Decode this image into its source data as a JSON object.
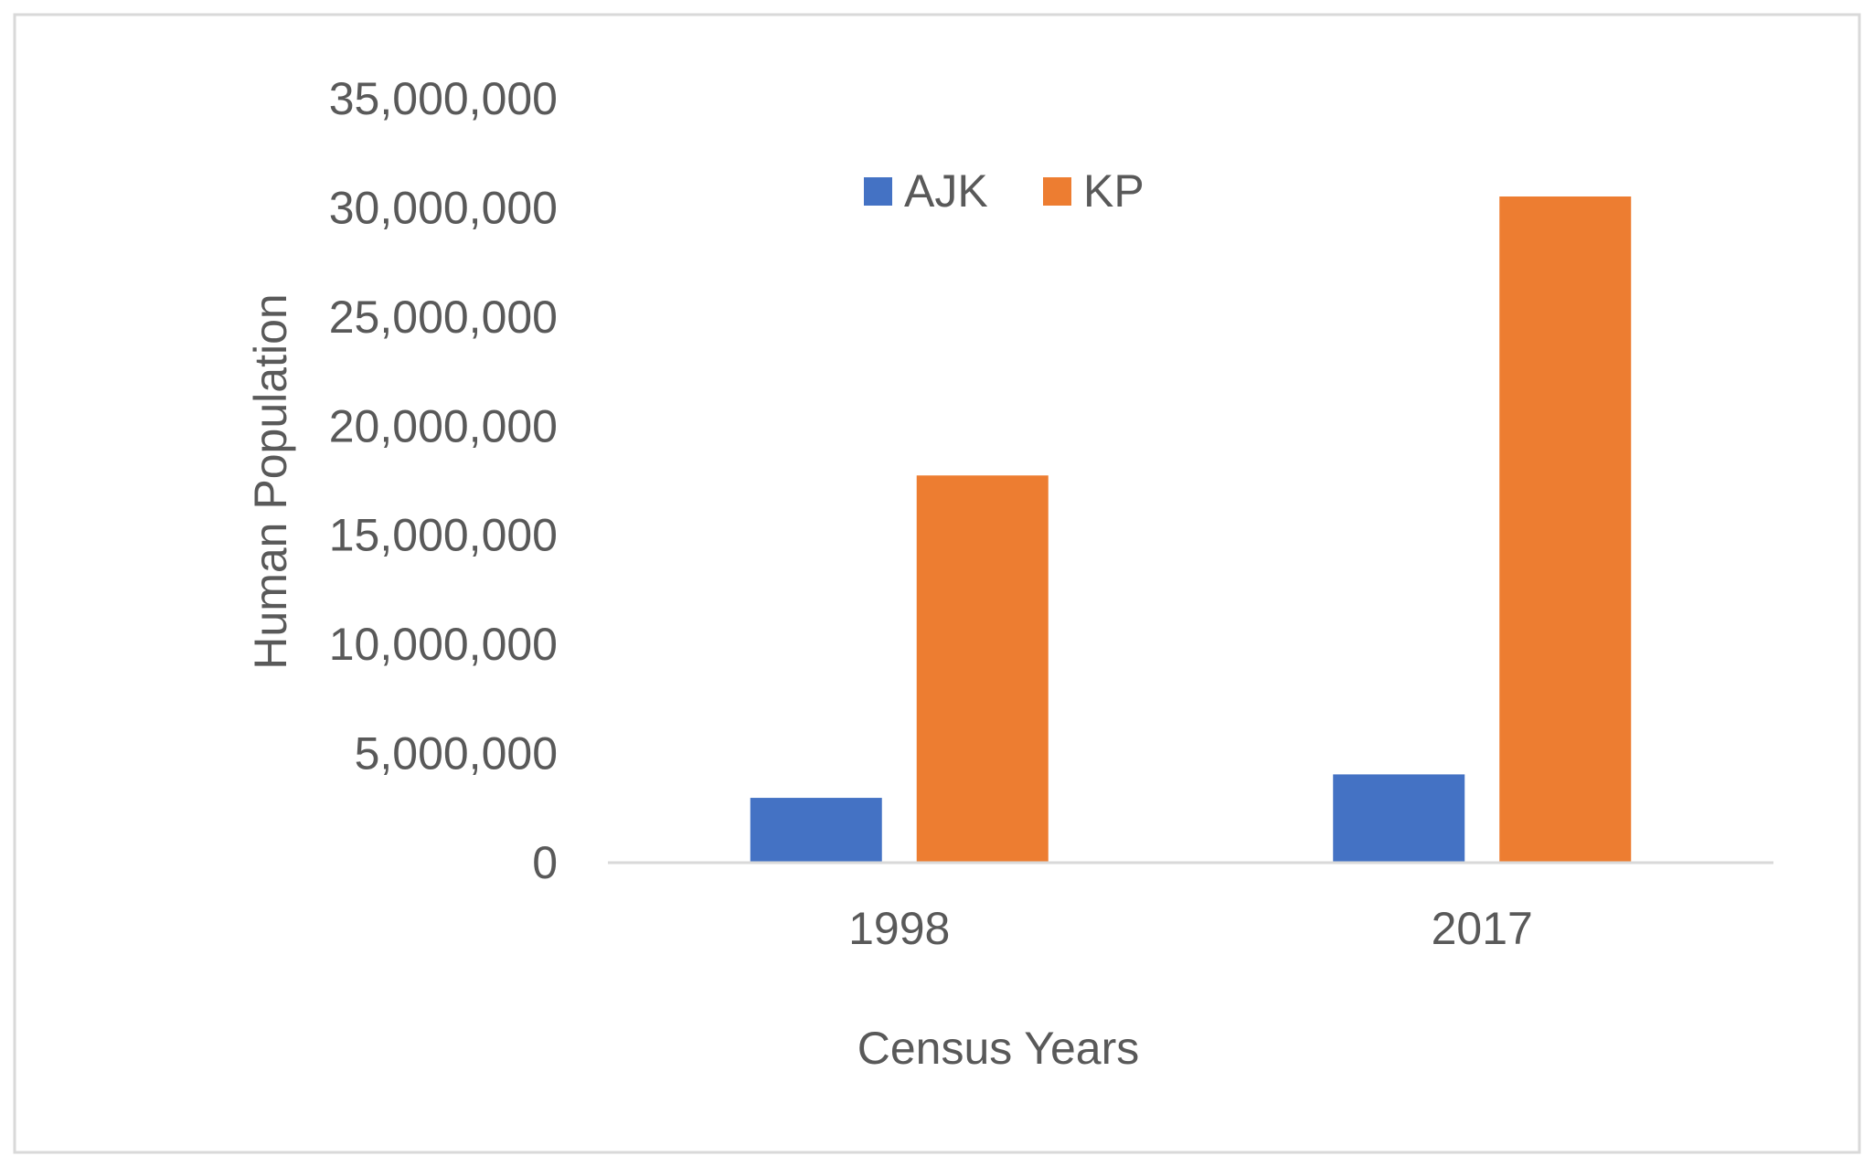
{
  "chart_data": {
    "type": "bar",
    "categories": [
      "1998",
      "2017"
    ],
    "series": [
      {
        "name": "AJK",
        "color": "#4472C4",
        "values": [
          2970000,
          4045000
        ]
      },
      {
        "name": "KP",
        "color": "#ED7D31",
        "values": [
          17740000,
          30520000
        ]
      }
    ],
    "title": "",
    "xlabel": "Census Years",
    "ylabel": "Human Population",
    "ylim": [
      0,
      35000000
    ],
    "y_ticks": [
      0,
      5000000,
      10000000,
      15000000,
      20000000,
      25000000,
      30000000,
      35000000
    ],
    "y_tick_labels": [
      "0",
      "5,000,000",
      "10,000,000",
      "15,000,000",
      "20,000,000",
      "25,000,000",
      "30,000,000",
      "35,000,000"
    ],
    "grid": false,
    "legend_position": "top-center"
  }
}
